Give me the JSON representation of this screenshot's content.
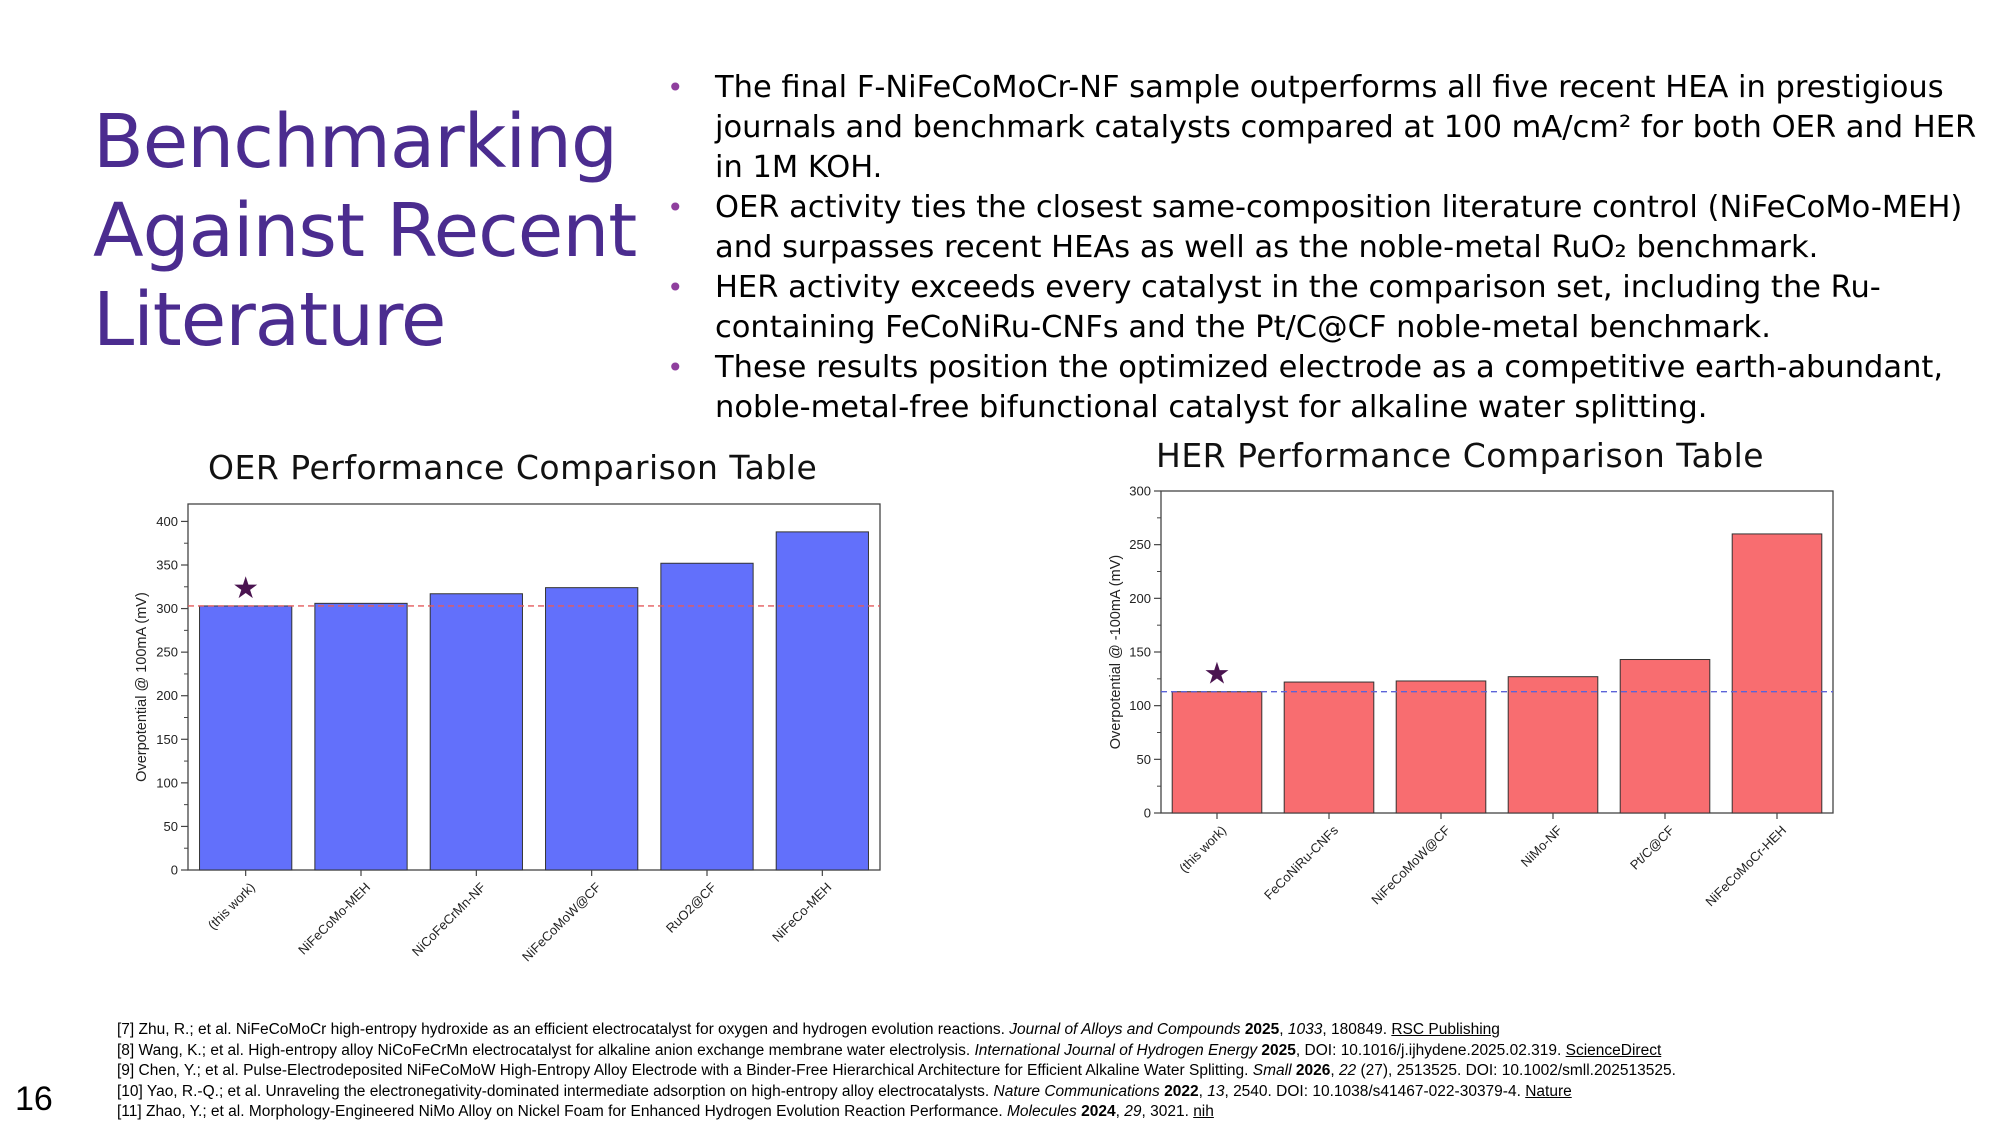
{
  "slide": {
    "title_lines": [
      "Benchmarking",
      "Against Recent",
      "Literature"
    ],
    "page_number": "16",
    "accent_color": "#4b2c8f",
    "bullet_color": "#8f3f9e"
  },
  "bullets": [
    "The final F-NiFeCoMoCr-NF sample outperforms all five recent HEA in prestigious journals and benchmark catalysts compared at 100 mA/cm² for both OER and HER in 1M KOH.",
    "OER activity ties the closest same-composition literature control (NiFeCoMo-MEH) and surpasses recent HEAs as well as the noble-metal RuO₂ benchmark.",
    "HER activity exceeds every catalyst in the comparison set, including the Ru-containing FeCoNiRu-CNFs and the Pt/C@CF noble-metal benchmark.",
    "These results position the optimized electrode as a competitive earth-abundant, noble-metal-free bifunctional catalyst for alkaline water splitting."
  ],
  "chart_data": [
    {
      "id": "oer",
      "type": "bar",
      "title": "OER Performance Comparison Table",
      "ylabel": "Overpotential @ 100mA (mV)",
      "categories": [
        "(this work)",
        "NiFeCoMo-MEH",
        "NiCoFeCrMn-NF",
        "NiFeCoMoW@CF",
        "RuO2@CF",
        "NiFeCo-MEH"
      ],
      "values": [
        303,
        306,
        317,
        324,
        352,
        388
      ],
      "ylim": [
        0,
        420
      ],
      "yticks": [
        0,
        50,
        100,
        150,
        200,
        250,
        300,
        350,
        400
      ],
      "bar_color": "#6270fb",
      "reference_line": {
        "value": 303,
        "color": "#e45b5b",
        "style": "dashed"
      },
      "marker": {
        "category": "(this work)",
        "symbol": "★",
        "color": "#4a1450"
      },
      "grid": false
    },
    {
      "id": "her",
      "type": "bar",
      "title": "HER Performance Comparison Table",
      "ylabel": "Overpotential @ -100mA (mV)",
      "categories": [
        "(this work)",
        "FeCoNiRu-CNFs",
        "NiFeCoMoW@CF",
        "NiMo-NF",
        "Pt/C@CF",
        "NiFeCoMoCr-HEH"
      ],
      "values": [
        113,
        122,
        123,
        127,
        143,
        260
      ],
      "ylim": [
        0,
        300
      ],
      "yticks": [
        0,
        50,
        100,
        150,
        200,
        250,
        300
      ],
      "bar_color": "#f86d70",
      "reference_line": {
        "value": 113,
        "color": "#5b64d8",
        "style": "dashed"
      },
      "marker": {
        "category": "(this work)",
        "symbol": "★",
        "color": "#4a1450"
      },
      "grid": false
    }
  ],
  "references": [
    [
      {
        "t": "[7] Zhu, R.; et al. NiFeCoMoCr high-entropy hydroxide as an efficient electrocatalyst for oxygen and hydrogen evolution reactions. "
      },
      {
        "t": "Journal of Alloys and Compounds",
        "s": "i"
      },
      {
        "t": " "
      },
      {
        "t": "2025",
        "s": "b"
      },
      {
        "t": ", "
      },
      {
        "t": "1033",
        "s": "i"
      },
      {
        "t": ", 180849. "
      },
      {
        "t": "RSC Publishing",
        "s": "u"
      }
    ],
    [
      {
        "t": "[8] Wang, K.; et al. High-entropy alloy NiCoFeCrMn electrocatalyst for alkaline anion exchange membrane water electrolysis. "
      },
      {
        "t": "International Journal of Hydrogen Energy",
        "s": "i"
      },
      {
        "t": " "
      },
      {
        "t": "2025",
        "s": "b"
      },
      {
        "t": ", DOI: 10.1016/j.ijhydene.2025.02.319. "
      },
      {
        "t": "ScienceDirect",
        "s": "u"
      }
    ],
    [
      {
        "t": "[9] Chen, Y.; et al. Pulse-Electrodeposited NiFeCoMoW High-Entropy Alloy Electrode with a Binder-Free Hierarchical Architecture for Efficient Alkaline Water Splitting. "
      },
      {
        "t": "Small",
        "s": "i"
      },
      {
        "t": " "
      },
      {
        "t": "2026",
        "s": "b"
      },
      {
        "t": ", "
      },
      {
        "t": "22",
        "s": "i"
      },
      {
        "t": " (27), 2513525. DOI: 10.1002/smll.202513525."
      }
    ],
    [
      {
        "t": "[10] Yao, R.-Q.; et al. Unraveling the electronegativity-dominated intermediate adsorption on high-entropy alloy electrocatalysts. "
      },
      {
        "t": "Nature Communications",
        "s": "i"
      },
      {
        "t": " "
      },
      {
        "t": "2022",
        "s": "b"
      },
      {
        "t": ", "
      },
      {
        "t": "13",
        "s": "i"
      },
      {
        "t": ", 2540. DOI: 10.1038/s41467-022-30379-4. "
      },
      {
        "t": "Nature",
        "s": "u"
      }
    ],
    [
      {
        "t": "[11] Zhao, Y.; et al. Morphology-Engineered NiMo Alloy on Nickel Foam for Enhanced Hydrogen Evolution Reaction Performance. "
      },
      {
        "t": "Molecules",
        "s": "i"
      },
      {
        "t": " "
      },
      {
        "t": "2024",
        "s": "b"
      },
      {
        "t": ", "
      },
      {
        "t": "29",
        "s": "i"
      },
      {
        "t": ", 3021. "
      },
      {
        "t": "nih",
        "s": "u"
      }
    ]
  ]
}
